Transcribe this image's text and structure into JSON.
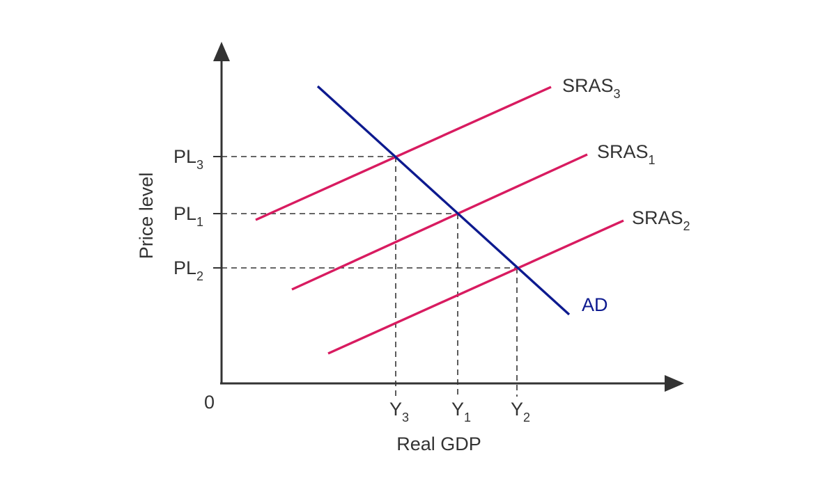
{
  "diagram": {
    "origin_label": "0",
    "x_axis_label": "Real GDP",
    "y_axis_label": "Price level",
    "colors": {
      "sras": "#d81b60",
      "ad": "#0d1a8f",
      "axes": "#333333"
    },
    "curves": {
      "sras3": {
        "base": "SRAS",
        "sub": "3"
      },
      "sras1": {
        "base": "SRAS",
        "sub": "1"
      },
      "sras2": {
        "base": "SRAS",
        "sub": "2"
      },
      "ad": {
        "base": "AD"
      }
    },
    "price_levels": [
      {
        "id": "pl3",
        "base": "PL",
        "sub": "3"
      },
      {
        "id": "pl1",
        "base": "PL",
        "sub": "1"
      },
      {
        "id": "pl2",
        "base": "PL",
        "sub": "2"
      }
    ],
    "outputs": [
      {
        "id": "y3",
        "base": "Y",
        "sub": "3"
      },
      {
        "id": "y1",
        "base": "Y",
        "sub": "1"
      },
      {
        "id": "y2",
        "base": "Y",
        "sub": "2"
      }
    ]
  }
}
